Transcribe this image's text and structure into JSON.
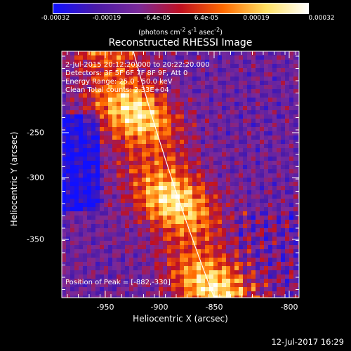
{
  "colorbar": {
    "ticks": [
      "-0.00032",
      "-0.00019",
      "-6.4e-05",
      "6.4e-05",
      "0.00019",
      "0.00032"
    ],
    "units_main": "(photons cm",
    "units_exp1": "-2",
    "units_mid1": " s",
    "units_exp2": "-1",
    "units_mid2": " asec",
    "units_exp3": "-2",
    "units_end": ")",
    "colors": [
      "#1010ff",
      "#4a1aa8",
      "#7a2a9a",
      "#c01020",
      "#ff6a00",
      "#ffe060",
      "#ffffff"
    ]
  },
  "title": "Reconstructed RHESSI Image",
  "info": {
    "line1": "2-Jul-2015 20:12:20.000 to 20:22:20.000",
    "line2": "Detectors: 3F 5F 6F 7F 8F 9F, Att 0",
    "line3": "Energy Range: 25.0 - 50.0 keV",
    "line4": "Clean     Total counts: 2.33E+04"
  },
  "peak_label": "Position of Peak = [-882,-330]",
  "axes": {
    "xlabel": "Heliocentric X (arcsec)",
    "ylabel": "Heliocentric Y (arcsec)",
    "xticks": [
      "-950",
      "-900",
      "-850",
      "-800"
    ],
    "yticks": [
      "-250",
      "-300",
      "-350"
    ]
  },
  "timestamp": "12-Jul-2017 16:29"
}
